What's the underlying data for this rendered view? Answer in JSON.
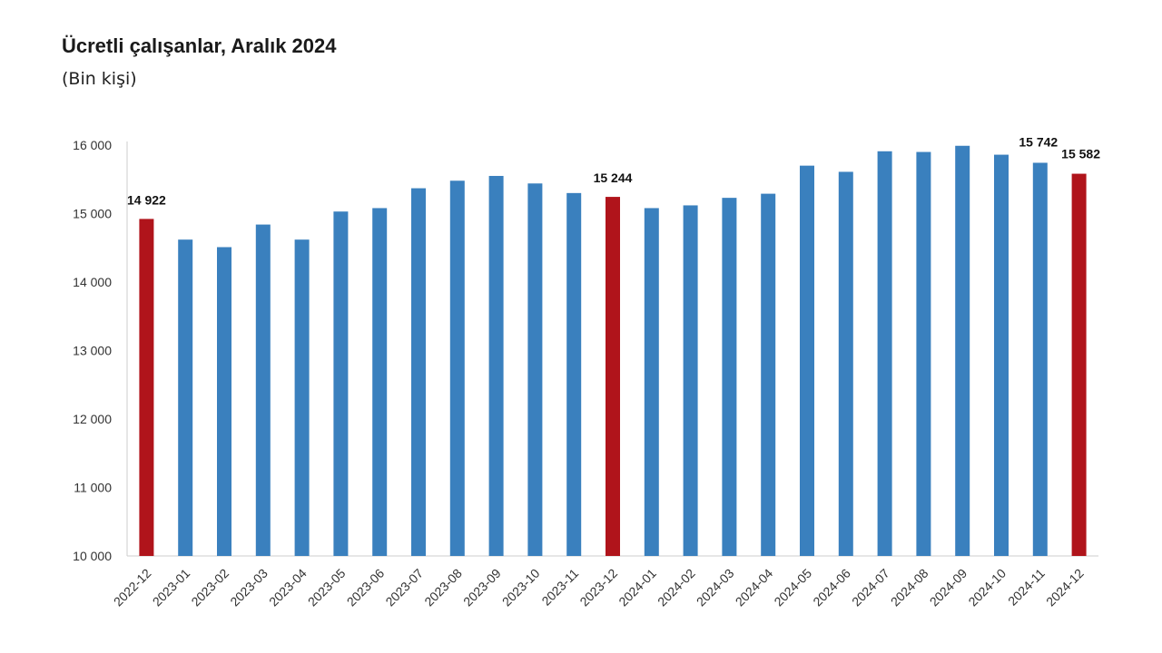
{
  "header": {
    "title": "Ücretli çalışanlar, Aralık 2024",
    "subtitle": "(Bin kişi)"
  },
  "colors": {
    "regular": "#3a80be",
    "highlight": "#b0141b",
    "axis": "#cccccc"
  },
  "chart_data": {
    "type": "bar",
    "title": "Ücretli çalışanlar, Aralık 2024",
    "subtitle": "(Bin kişi)",
    "xlabel": "",
    "ylabel": "",
    "ylim": [
      10000,
      16000
    ],
    "yticks": [
      10000,
      11000,
      12000,
      13000,
      14000,
      15000,
      16000
    ],
    "ytick_labels": [
      "10 000",
      "11 000",
      "12 000",
      "13 000",
      "14 000",
      "15 000",
      "16 000"
    ],
    "grid": false,
    "categories": [
      "2022-12",
      "2023-01",
      "2023-02",
      "2023-03",
      "2023-04",
      "2023-05",
      "2023-06",
      "2023-07",
      "2023-08",
      "2023-09",
      "2023-10",
      "2023-11",
      "2023-12",
      "2024-01",
      "2024-02",
      "2024-03",
      "2024-04",
      "2024-05",
      "2024-06",
      "2024-07",
      "2024-08",
      "2024-09",
      "2024-10",
      "2024-11",
      "2024-12"
    ],
    "values": [
      14922,
      14620,
      14510,
      14840,
      14620,
      15030,
      15080,
      15370,
      15480,
      15550,
      15440,
      15300,
      15244,
      15080,
      15120,
      15230,
      15290,
      15700,
      15610,
      15910,
      15900,
      15990,
      15860,
      15742,
      15582
    ],
    "highlighted": [
      "2022-12",
      "2023-12",
      "2024-12"
    ],
    "data_labels": [
      {
        "category": "2022-12",
        "text": "14 922"
      },
      {
        "category": "2023-12",
        "text": "15 244"
      },
      {
        "category": "2024-11",
        "text": "15 742"
      },
      {
        "category": "2024-12",
        "text": "15 582"
      }
    ]
  }
}
